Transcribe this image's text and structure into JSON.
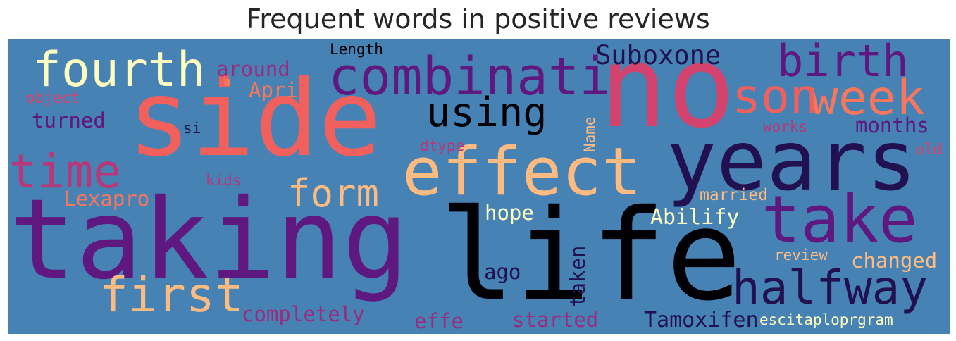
{
  "title": "Frequent words in positive reviews",
  "colors": {
    "background": "#4682b4",
    "black": "#000004",
    "indigo": "#221150",
    "purple": "#5f187f",
    "magenta": "#982d80",
    "rose": "#d3436e",
    "coral": "#f8765c",
    "peach": "#febb81",
    "cream": "#fcfdbf"
  },
  "words": {
    "taking": "taking",
    "life": "life",
    "side": "side",
    "no": "no",
    "years": "years",
    "effect": "effect",
    "take": "take",
    "halfway": "halfway",
    "combinati": "combinati",
    "fourth": "fourth",
    "first": "first",
    "week": "week",
    "son": "son",
    "birth": "birth",
    "time": "time",
    "using": "using",
    "form": "form",
    "suboxone": "Suboxone",
    "abilify": "Abilify",
    "tamoxifen": "Tamoxifen",
    "lexapro": "Lexapro",
    "completely": "completely",
    "around": "around",
    "apri": "Apri",
    "turned": "turned",
    "months": "months",
    "changed": "changed",
    "started": "started",
    "effe": "effe",
    "ago": "ago",
    "hope": "hope",
    "taken": "taken",
    "married": "married",
    "escitaploprgram": "escitaploprgram",
    "review": "review",
    "works": "works",
    "dtype": "dtype",
    "kids": "kids",
    "name": "Name",
    "old": "old",
    "object": "object",
    "si": "si",
    "length": "Length",
    "dot": "."
  }
}
